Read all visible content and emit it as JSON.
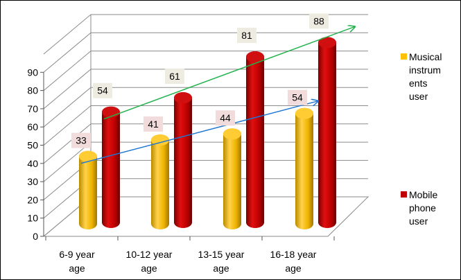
{
  "chart_data": {
    "type": "bar",
    "title": "",
    "xlabel": "",
    "ylabel": "",
    "categories": [
      "6-9 year\nage",
      "10-12 year\nage",
      "13-15 year\nage",
      "16-18 year\nage"
    ],
    "series": [
      {
        "name": "Musical\ninstrum\nents\nuser",
        "values": [
          33,
          41,
          44,
          54
        ],
        "color": "#FFC000"
      },
      {
        "name": "Mobile\nphone\nuser",
        "values": [
          54,
          61,
          81,
          88
        ],
        "color": "#C00000"
      }
    ],
    "ylim": [
      0,
      90
    ],
    "yticks": [
      0,
      10,
      20,
      30,
      40,
      50,
      60,
      70,
      80,
      90
    ],
    "grid": true,
    "legend": "right",
    "style": "3d-cylinder",
    "trend_arrows": [
      {
        "series": "Musical\ninstrum\nents\nuser",
        "color": "#1F77D4"
      },
      {
        "series": "Mobile\nphone\nuser",
        "color": "#22B24C"
      }
    ],
    "label_bg": {
      "Musical\ninstrum\nents\nuser": "#F2DCDB",
      "Mobile\nphone\nuser": "#EEECE1"
    }
  }
}
